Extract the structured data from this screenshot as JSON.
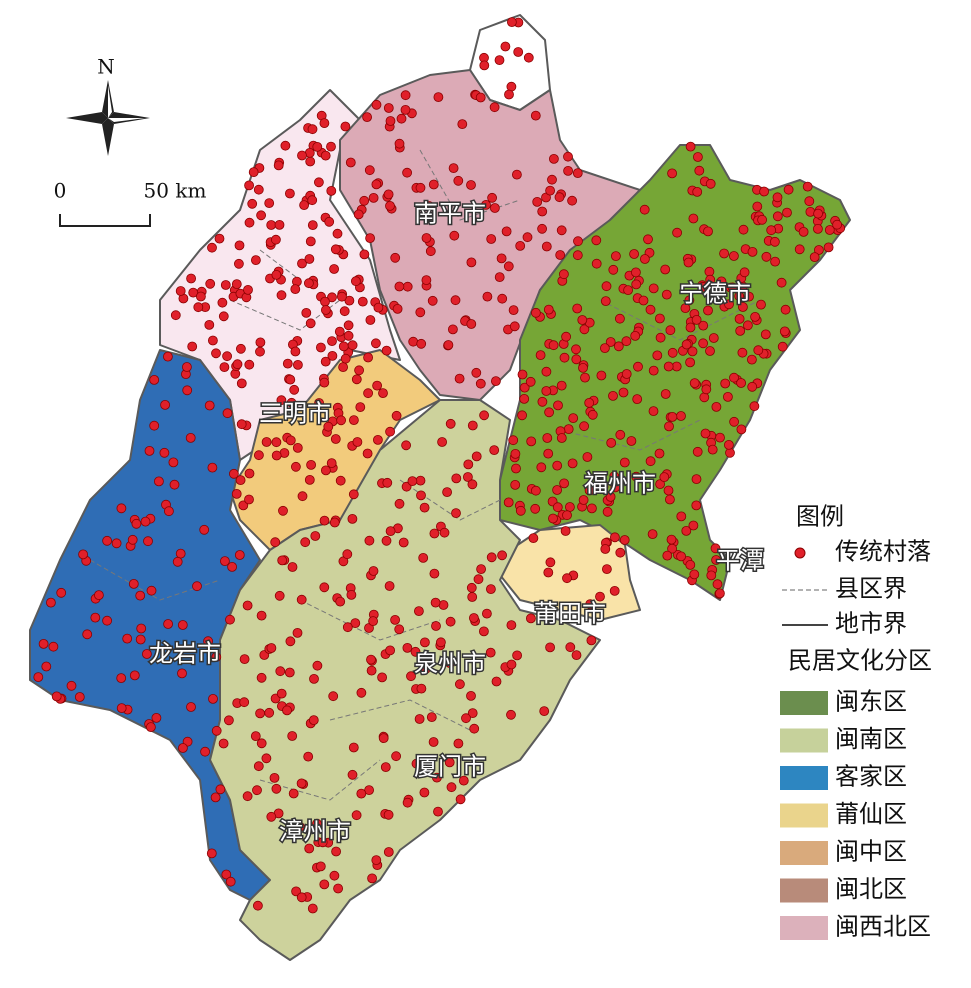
{
  "map": {
    "compass": "N",
    "scale": {
      "start": "0",
      "end": "50 km"
    },
    "labels": [
      "南平市",
      "宁德市",
      "三明市",
      "福州市",
      "平潭",
      "莆田市",
      "龙岩市",
      "泉州市",
      "厦门市",
      "漳州市"
    ],
    "legend": {
      "title": "图例",
      "point": "传统村落",
      "county_line": "县区界",
      "city_line": "地市界",
      "zones_title": "民居文化分区",
      "zones": [
        {
          "name": "闽东区",
          "color": "#6b8e4e"
        },
        {
          "name": "闽南区",
          "color": "#c6d19b"
        },
        {
          "name": "客家区",
          "color": "#2d86c1"
        },
        {
          "name": "莆仙区",
          "color": "#ead48c"
        },
        {
          "name": "闽中区",
          "color": "#d9aa7c"
        },
        {
          "name": "闽北区",
          "color": "#b88b7a"
        },
        {
          "name": "闽西北区",
          "color": "#dcb1bb"
        }
      ]
    }
  }
}
